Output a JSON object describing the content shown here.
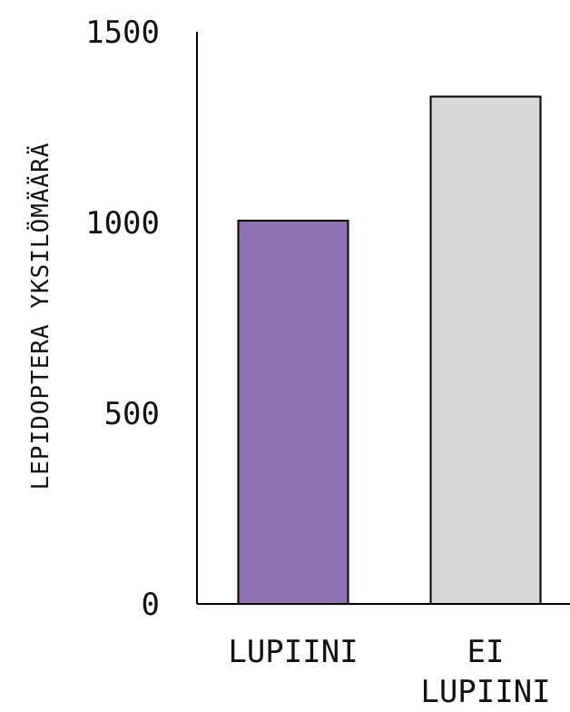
{
  "chart_data": {
    "type": "bar",
    "categories": [
      "LUPIINI",
      "EI LUPIINI"
    ],
    "category_label_lines": [
      [
        "LUPIINI"
      ],
      [
        "EI",
        "LUPIINI"
      ]
    ],
    "values": [
      1005,
      1330
    ],
    "title": "",
    "xlabel": "",
    "ylabel": "LEPIDOPTERA YKSILÖMÄÄRÄ",
    "ylim": [
      0,
      1500
    ],
    "yticks": [
      0,
      500,
      1000,
      1500
    ],
    "ytick_labels": [
      "0",
      "500",
      "1000",
      "1500"
    ],
    "grid": false,
    "legend": "none",
    "colors": [
      "#8f72b2",
      "#d9d9d9"
    ],
    "bar_edge_color": "#000000"
  }
}
